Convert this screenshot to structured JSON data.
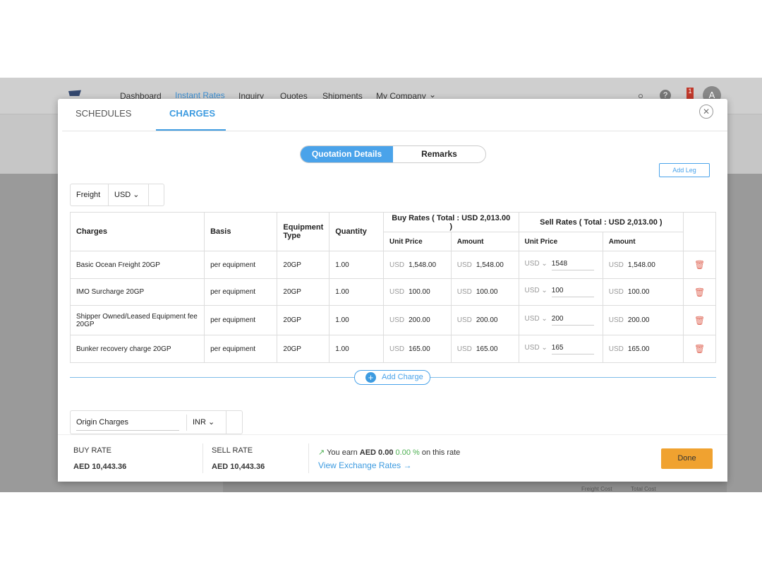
{
  "nav": {
    "items": [
      "Dashboard",
      "Instant Rates",
      "Inquiry",
      "Quotes",
      "Shipments",
      "My Company"
    ],
    "active": "Instant Rates",
    "notification_count": "1",
    "avatar": "A"
  },
  "modal": {
    "tabs": [
      "SCHEDULES",
      "CHARGES"
    ],
    "active_tab": "CHARGES",
    "segments": [
      "Quotation Details",
      "Remarks"
    ],
    "add_leg": "Add Leg",
    "freight_select": {
      "label": "Freight",
      "currency": "USD"
    },
    "table": {
      "headers": {
        "charges": "Charges",
        "basis": "Basis",
        "equipment": "Equipment Type",
        "quantity": "Quantity",
        "buy": "Buy Rates ( Total : USD 2,013.00 )",
        "sell": "Sell Rates ( Total : USD 2,013.00 )",
        "unit_price": "Unit Price",
        "amount": "Amount"
      },
      "rows": [
        {
          "charge": "Basic Ocean Freight 20GP",
          "basis": "per equipment",
          "equipment": "20GP",
          "qty": "1.00",
          "buy_unit": "1,548.00",
          "buy_amount": "1,548.00",
          "sell_unit": "1548",
          "sell_amount": "1,548.00"
        },
        {
          "charge": "IMO Surcharge 20GP",
          "basis": "per equipment",
          "equipment": "20GP",
          "qty": "1.00",
          "buy_unit": "100.00",
          "buy_amount": "100.00",
          "sell_unit": "100",
          "sell_amount": "100.00"
        },
        {
          "charge": "Shipper Owned/Leased Equipment fee 20GP",
          "basis": "per equipment",
          "equipment": "20GP",
          "qty": "1.00",
          "buy_unit": "200.00",
          "buy_amount": "200.00",
          "sell_unit": "200",
          "sell_amount": "200.00"
        },
        {
          "charge": "Bunker recovery charge 20GP",
          "basis": "per equipment",
          "equipment": "20GP",
          "qty": "1.00",
          "buy_unit": "165.00",
          "buy_amount": "165.00",
          "sell_unit": "165",
          "sell_amount": "165.00"
        }
      ],
      "currency": "USD"
    },
    "add_charge": "Add Charge",
    "origin_select": {
      "label": "Origin Charges",
      "currency": "INR"
    },
    "footer": {
      "buy_label": "BUY RATE",
      "buy_value": "AED 10,443.36",
      "sell_label": "SELL RATE",
      "sell_value": "AED 10,443.36",
      "earn_prefix": "You earn",
      "earn_amount": "AED 0.00",
      "earn_pct": "0.00 %",
      "earn_suffix": "on this rate",
      "exchange_link": "View Exchange Rates",
      "done": "Done"
    }
  },
  "background": {
    "freight_cost": "Freight Cost",
    "total_cost": "Total Cost"
  }
}
